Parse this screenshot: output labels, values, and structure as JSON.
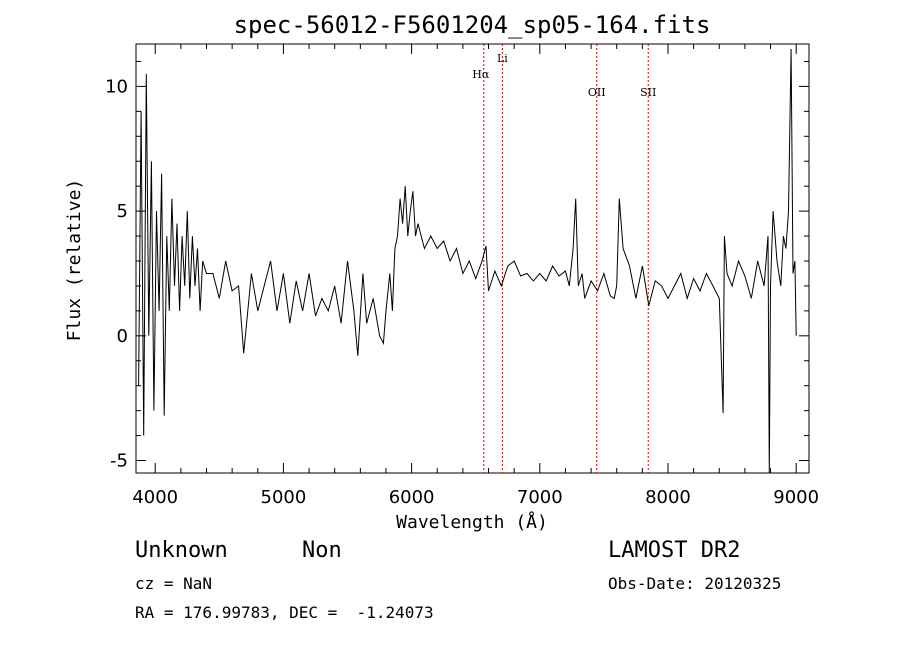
{
  "chart_data": {
    "type": "line",
    "title": "spec-56012-F5601204_sp05-164.fits",
    "xlabel": "Wavelength (Å)",
    "ylabel": "Flux (relative)",
    "xlim": [
      3850,
      9100
    ],
    "ylim": [
      -5.5,
      11.7
    ],
    "x_ticks": [
      4000,
      5000,
      6000,
      7000,
      8000,
      9000
    ],
    "y_ticks": [
      -5,
      0,
      5,
      10
    ],
    "grid": false,
    "line_color": "#000000",
    "marker_color": "#cc0000",
    "series": [
      {
        "x": [
          3870,
          3890,
          3910,
          3930,
          3950,
          3970,
          3990,
          4010,
          4030,
          4050,
          4070,
          4090,
          4110,
          4130,
          4150,
          4170,
          4190,
          4210,
          4230,
          4250,
          4270,
          4290,
          4310,
          4330,
          4350,
          4370,
          4400,
          4450,
          4500,
          4550,
          4600,
          4650,
          4690,
          4750,
          4800,
          4850,
          4900,
          4950,
          5000,
          5050,
          5100,
          5150,
          5200,
          5250,
          5300,
          5350,
          5400,
          5450,
          5500,
          5550,
          5580,
          5620,
          5650,
          5700,
          5750,
          5780,
          5800,
          5830,
          5850,
          5870,
          5890,
          5910,
          5930,
          5950,
          5970,
          5990,
          6010,
          6030,
          6050,
          6100,
          6150,
          6200,
          6250,
          6300,
          6350,
          6400,
          6450,
          6500,
          6550,
          6580,
          6600,
          6650,
          6700,
          6750,
          6800,
          6850,
          6900,
          6950,
          7000,
          7050,
          7100,
          7150,
          7200,
          7230,
          7260,
          7280,
          7300,
          7330,
          7350,
          7400,
          7450,
          7500,
          7550,
          7580,
          7600,
          7620,
          7650,
          7700,
          7750,
          7800,
          7850,
          7900,
          7950,
          8000,
          8050,
          8100,
          8150,
          8200,
          8250,
          8300,
          8350,
          8400,
          8430,
          8440,
          8460,
          8500,
          8550,
          8600,
          8650,
          8700,
          8750,
          8780,
          8790,
          8800,
          8820,
          8850,
          8880,
          8900,
          8920,
          8940,
          8960,
          8975,
          8990,
          9000
        ],
        "y": [
          -2,
          9,
          -4,
          10.5,
          0,
          7,
          -3,
          5,
          1,
          6.5,
          -3.2,
          4,
          1,
          5.5,
          2,
          4.5,
          1,
          4,
          2,
          5,
          1.5,
          4,
          2,
          3.5,
          1,
          3,
          2.5,
          2.5,
          1.5,
          3,
          1.8,
          2,
          -0.7,
          2.5,
          1,
          2,
          3,
          1,
          2.5,
          0.5,
          2.2,
          1,
          2.5,
          0.8,
          1.5,
          1,
          2,
          0.5,
          3,
          1,
          -0.8,
          2.5,
          0.5,
          1.5,
          0,
          -0.3,
          1,
          2.5,
          1,
          3.5,
          4,
          5.5,
          4.5,
          6,
          4,
          5,
          5.8,
          4,
          4.5,
          3.5,
          4,
          3.5,
          3.8,
          3,
          3.5,
          2.5,
          3,
          2.3,
          3,
          3.6,
          1.8,
          2.6,
          2,
          2.8,
          3,
          2.4,
          2.5,
          2.2,
          2.5,
          2.2,
          2.8,
          2.4,
          2.6,
          2,
          3.5,
          5.5,
          2,
          2.5,
          1.5,
          2.2,
          1.8,
          2.5,
          1.6,
          1.5,
          2,
          5.5,
          3.5,
          2.8,
          1.5,
          2.8,
          1.2,
          2.2,
          2,
          1.5,
          2,
          2.5,
          1.5,
          2.3,
          1.8,
          2.5,
          2,
          1.5,
          -3.1,
          4,
          2.5,
          2,
          3,
          2.4,
          1.5,
          3,
          2,
          4,
          -5.5,
          2,
          5,
          3,
          2,
          4,
          3.5,
          5,
          11.5,
          2.5,
          3,
          0
        ],
        "lines": [
          {
            "name": "Hα",
            "wavelength": 6563
          },
          {
            "name": "Li",
            "wavelength": 6708
          },
          {
            "name": "OII",
            "wavelength": 7444
          },
          {
            "name": "SII",
            "wavelength": 7846
          }
        ]
      }
    ]
  },
  "info": {
    "class_label": "Unknown",
    "subclass_label": "Non",
    "survey": "LAMOST DR2",
    "cz": "cz = NaN",
    "obs_date": "Obs-Date: 20120325",
    "coords": "RA = 176.99783, DEC =  -1.24073"
  }
}
